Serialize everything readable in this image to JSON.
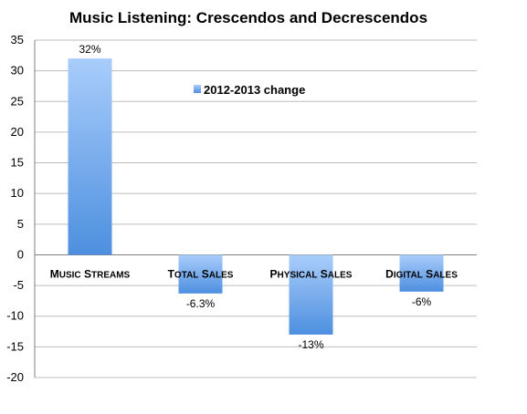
{
  "chart_data": {
    "type": "bar",
    "title": "Music Listening: Crescendos and Decrescendos",
    "categories": [
      "Music streams",
      "Total sales",
      "Physical sales",
      "Digital sales"
    ],
    "series": [
      {
        "name": "2012-2013 change",
        "values": [
          32,
          -6.3,
          -13,
          -6
        ]
      }
    ],
    "data_labels": [
      "32%",
      "-6.3%",
      "-13%",
      "-6%"
    ],
    "ylim": [
      -20,
      35
    ],
    "y_ticks": [
      35,
      30,
      25,
      20,
      15,
      10,
      5,
      0,
      -5,
      -10,
      -15,
      -20
    ],
    "grid": true,
    "legend_position": "inside-top-center",
    "colors": {
      "bar_top": "#a9cdfb",
      "bar_bottom": "#4d8fdf",
      "grid": "#bdbdbd",
      "axis": "#7f7f7f"
    }
  }
}
